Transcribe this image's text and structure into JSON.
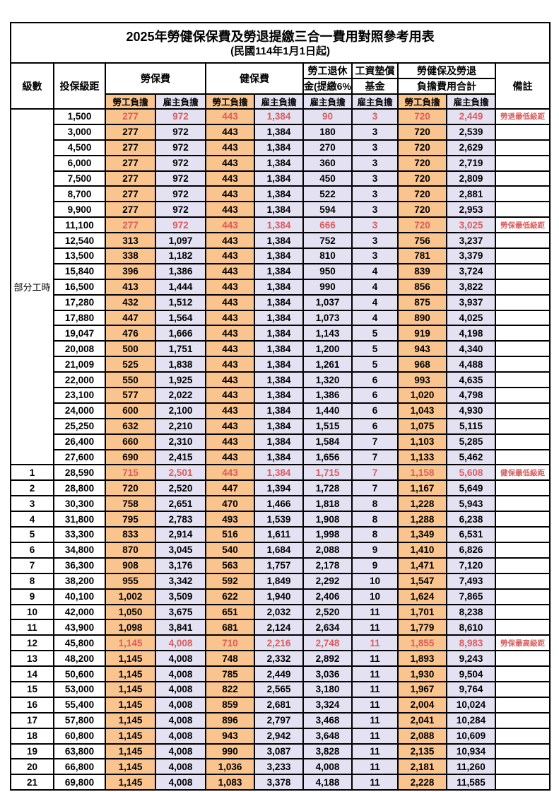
{
  "page": {
    "title_line1": "2025年勞健保保費及勞退提繳三合一費用對照參考用表",
    "title_line2": "(民國114年1月1日起)"
  },
  "header": {
    "level": "級數",
    "bracket": "投保級距",
    "labor_insurance": "勞保費",
    "health_insurance": "健保費",
    "pension_top": "勞工退休",
    "pension_bottom": "金(提繳6%)",
    "wage_fund_top": "工資墊償",
    "wage_fund_bottom": "基金",
    "total_top": "勞健保及勞退",
    "total_bottom": "負擔費用合計",
    "remark": "備註",
    "employee_burden": "勞工負擔",
    "employer_burden": "雇主負擔"
  },
  "part_time": {
    "label": "部分工時",
    "row_count": 23
  },
  "colors": {
    "employee_bg": "#F9C48E",
    "employer_bg": "#E3E1F2",
    "highlight_text": "#DC5C5C",
    "border": "#000000"
  },
  "rows": [
    {
      "level": "",
      "bracket": "1,500",
      "v": [
        "277",
        "972",
        "443",
        "1,384",
        "90",
        "3",
        "720",
        "2,449"
      ],
      "note": "勞退最低級距",
      "red": true
    },
    {
      "level": "",
      "bracket": "3,000",
      "v": [
        "277",
        "972",
        "443",
        "1,384",
        "180",
        "3",
        "720",
        "2,539"
      ],
      "note": "",
      "red": false
    },
    {
      "level": "",
      "bracket": "4,500",
      "v": [
        "277",
        "972",
        "443",
        "1,384",
        "270",
        "3",
        "720",
        "2,629"
      ],
      "note": "",
      "red": false
    },
    {
      "level": "",
      "bracket": "6,000",
      "v": [
        "277",
        "972",
        "443",
        "1,384",
        "360",
        "3",
        "720",
        "2,719"
      ],
      "note": "",
      "red": false
    },
    {
      "level": "",
      "bracket": "7,500",
      "v": [
        "277",
        "972",
        "443",
        "1,384",
        "450",
        "3",
        "720",
        "2,809"
      ],
      "note": "",
      "red": false
    },
    {
      "level": "",
      "bracket": "8,700",
      "v": [
        "277",
        "972",
        "443",
        "1,384",
        "522",
        "3",
        "720",
        "2,881"
      ],
      "note": "",
      "red": false
    },
    {
      "level": "",
      "bracket": "9,900",
      "v": [
        "277",
        "972",
        "443",
        "1,384",
        "594",
        "3",
        "720",
        "2,953"
      ],
      "note": "",
      "red": false
    },
    {
      "level": "",
      "bracket": "11,100",
      "v": [
        "277",
        "972",
        "443",
        "1,384",
        "666",
        "3",
        "720",
        "3,025"
      ],
      "note": "勞保最低級距",
      "red": true
    },
    {
      "level": "",
      "bracket": "12,540",
      "v": [
        "313",
        "1,097",
        "443",
        "1,384",
        "752",
        "3",
        "756",
        "3,237"
      ],
      "note": "",
      "red": false
    },
    {
      "level": "",
      "bracket": "13,500",
      "v": [
        "338",
        "1,182",
        "443",
        "1,384",
        "810",
        "3",
        "781",
        "3,379"
      ],
      "note": "",
      "red": false
    },
    {
      "level": "",
      "bracket": "15,840",
      "v": [
        "396",
        "1,386",
        "443",
        "1,384",
        "950",
        "4",
        "839",
        "3,724"
      ],
      "note": "",
      "red": false
    },
    {
      "level": "",
      "bracket": "16,500",
      "v": [
        "413",
        "1,444",
        "443",
        "1,384",
        "990",
        "4",
        "856",
        "3,822"
      ],
      "note": "",
      "red": false
    },
    {
      "level": "",
      "bracket": "17,280",
      "v": [
        "432",
        "1,512",
        "443",
        "1,384",
        "1,037",
        "4",
        "875",
        "3,937"
      ],
      "note": "",
      "red": false
    },
    {
      "level": "",
      "bracket": "17,880",
      "v": [
        "447",
        "1,564",
        "443",
        "1,384",
        "1,073",
        "4",
        "890",
        "4,025"
      ],
      "note": "",
      "red": false
    },
    {
      "level": "",
      "bracket": "19,047",
      "v": [
        "476",
        "1,666",
        "443",
        "1,384",
        "1,143",
        "5",
        "919",
        "4,198"
      ],
      "note": "",
      "red": false
    },
    {
      "level": "",
      "bracket": "20,008",
      "v": [
        "500",
        "1,751",
        "443",
        "1,384",
        "1,200",
        "5",
        "943",
        "4,340"
      ],
      "note": "",
      "red": false
    },
    {
      "level": "",
      "bracket": "21,009",
      "v": [
        "525",
        "1,838",
        "443",
        "1,384",
        "1,261",
        "5",
        "968",
        "4,488"
      ],
      "note": "",
      "red": false
    },
    {
      "level": "",
      "bracket": "22,000",
      "v": [
        "550",
        "1,925",
        "443",
        "1,384",
        "1,320",
        "6",
        "993",
        "4,635"
      ],
      "note": "",
      "red": false
    },
    {
      "level": "",
      "bracket": "23,100",
      "v": [
        "577",
        "2,022",
        "443",
        "1,384",
        "1,386",
        "6",
        "1,020",
        "4,798"
      ],
      "note": "",
      "red": false
    },
    {
      "level": "",
      "bracket": "24,000",
      "v": [
        "600",
        "2,100",
        "443",
        "1,384",
        "1,440",
        "6",
        "1,043",
        "4,930"
      ],
      "note": "",
      "red": false
    },
    {
      "level": "",
      "bracket": "25,250",
      "v": [
        "632",
        "2,210",
        "443",
        "1,384",
        "1,515",
        "6",
        "1,075",
        "5,115"
      ],
      "note": "",
      "red": false
    },
    {
      "level": "",
      "bracket": "26,400",
      "v": [
        "660",
        "2,310",
        "443",
        "1,384",
        "1,584",
        "7",
        "1,103",
        "5,285"
      ],
      "note": "",
      "red": false
    },
    {
      "level": "",
      "bracket": "27,600",
      "v": [
        "690",
        "2,415",
        "443",
        "1,384",
        "1,656",
        "7",
        "1,133",
        "5,462"
      ],
      "note": "",
      "red": false
    },
    {
      "level": "1",
      "bracket": "28,590",
      "v": [
        "715",
        "2,501",
        "443",
        "1,384",
        "1,715",
        "7",
        "1,158",
        "5,608"
      ],
      "note": "健保最低級距",
      "red": true
    },
    {
      "level": "2",
      "bracket": "28,800",
      "v": [
        "720",
        "2,520",
        "447",
        "1,394",
        "1,728",
        "7",
        "1,167",
        "5,649"
      ],
      "note": "",
      "red": false
    },
    {
      "level": "3",
      "bracket": "30,300",
      "v": [
        "758",
        "2,651",
        "470",
        "1,466",
        "1,818",
        "8",
        "1,228",
        "5,943"
      ],
      "note": "",
      "red": false
    },
    {
      "level": "4",
      "bracket": "31,800",
      "v": [
        "795",
        "2,783",
        "493",
        "1,539",
        "1,908",
        "8",
        "1,288",
        "6,238"
      ],
      "note": "",
      "red": false
    },
    {
      "level": "5",
      "bracket": "33,300",
      "v": [
        "833",
        "2,914",
        "516",
        "1,611",
        "1,998",
        "8",
        "1,349",
        "6,531"
      ],
      "note": "",
      "red": false
    },
    {
      "level": "6",
      "bracket": "34,800",
      "v": [
        "870",
        "3,045",
        "540",
        "1,684",
        "2,088",
        "9",
        "1,410",
        "6,826"
      ],
      "note": "",
      "red": false
    },
    {
      "level": "7",
      "bracket": "36,300",
      "v": [
        "908",
        "3,176",
        "563",
        "1,757",
        "2,178",
        "9",
        "1,471",
        "7,120"
      ],
      "note": "",
      "red": false
    },
    {
      "level": "8",
      "bracket": "38,200",
      "v": [
        "955",
        "3,342",
        "592",
        "1,849",
        "2,292",
        "10",
        "1,547",
        "7,493"
      ],
      "note": "",
      "red": false
    },
    {
      "level": "9",
      "bracket": "40,100",
      "v": [
        "1,002",
        "3,509",
        "622",
        "1,940",
        "2,406",
        "10",
        "1,624",
        "7,865"
      ],
      "note": "",
      "red": false
    },
    {
      "level": "10",
      "bracket": "42,000",
      "v": [
        "1,050",
        "3,675",
        "651",
        "2,032",
        "2,520",
        "11",
        "1,701",
        "8,238"
      ],
      "note": "",
      "red": false
    },
    {
      "level": "11",
      "bracket": "43,900",
      "v": [
        "1,098",
        "3,841",
        "681",
        "2,124",
        "2,634",
        "11",
        "1,779",
        "8,610"
      ],
      "note": "",
      "red": false
    },
    {
      "level": "12",
      "bracket": "45,800",
      "v": [
        "1,145",
        "4,008",
        "710",
        "2,216",
        "2,748",
        "11",
        "1,855",
        "8,983"
      ],
      "note": "勞保最高級距",
      "red": true
    },
    {
      "level": "13",
      "bracket": "48,200",
      "v": [
        "1,145",
        "4,008",
        "748",
        "2,332",
        "2,892",
        "11",
        "1,893",
        "9,243"
      ],
      "note": "",
      "red": false
    },
    {
      "level": "14",
      "bracket": "50,600",
      "v": [
        "1,145",
        "4,008",
        "785",
        "2,449",
        "3,036",
        "11",
        "1,930",
        "9,504"
      ],
      "note": "",
      "red": false
    },
    {
      "level": "15",
      "bracket": "53,000",
      "v": [
        "1,145",
        "4,008",
        "822",
        "2,565",
        "3,180",
        "11",
        "1,967",
        "9,764"
      ],
      "note": "",
      "red": false
    },
    {
      "level": "16",
      "bracket": "55,400",
      "v": [
        "1,145",
        "4,008",
        "859",
        "2,681",
        "3,324",
        "11",
        "2,004",
        "10,024"
      ],
      "note": "",
      "red": false
    },
    {
      "level": "17",
      "bracket": "57,800",
      "v": [
        "1,145",
        "4,008",
        "896",
        "2,797",
        "3,468",
        "11",
        "2,041",
        "10,284"
      ],
      "note": "",
      "red": false
    },
    {
      "level": "18",
      "bracket": "60,800",
      "v": [
        "1,145",
        "4,008",
        "943",
        "2,942",
        "3,648",
        "11",
        "2,088",
        "10,609"
      ],
      "note": "",
      "red": false
    },
    {
      "level": "19",
      "bracket": "63,800",
      "v": [
        "1,145",
        "4,008",
        "990",
        "3,087",
        "3,828",
        "11",
        "2,135",
        "10,934"
      ],
      "note": "",
      "red": false
    },
    {
      "level": "20",
      "bracket": "66,800",
      "v": [
        "1,145",
        "4,008",
        "1,036",
        "3,233",
        "4,008",
        "11",
        "2,181",
        "11,260"
      ],
      "note": "",
      "red": false
    },
    {
      "level": "21",
      "bracket": "69,800",
      "v": [
        "1,145",
        "4,008",
        "1,083",
        "3,378",
        "4,188",
        "11",
        "2,228",
        "11,585"
      ],
      "note": "",
      "red": false
    }
  ]
}
